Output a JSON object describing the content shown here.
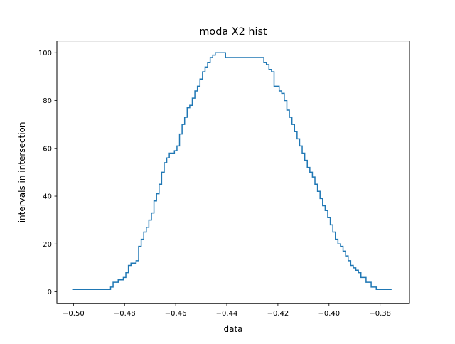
{
  "chart_data": {
    "type": "line",
    "title": "moda X2 hist",
    "xlabel": "data",
    "ylabel": "intervals in intersection",
    "xlim": [
      -0.5065,
      -0.3685
    ],
    "ylim": [
      -4.95,
      104.95
    ],
    "xticks": [
      -0.5,
      -0.48,
      -0.46,
      -0.44,
      -0.42,
      -0.4,
      -0.38
    ],
    "xtick_labels": [
      "−0.50",
      "−0.48",
      "−0.46",
      "−0.44",
      "−0.42",
      "−0.40",
      "−0.38"
    ],
    "yticks": [
      0,
      20,
      40,
      60,
      80,
      100
    ],
    "ytick_labels": [
      "0",
      "20",
      "40",
      "60",
      "80",
      "100"
    ],
    "grid": false,
    "line_color": "#1f77b4",
    "series": [
      {
        "step": true,
        "x": [
          -0.5005,
          -0.486,
          -0.4855,
          -0.4845,
          -0.4825,
          -0.4805,
          -0.4795,
          -0.4785,
          -0.4775,
          -0.4755,
          -0.4745,
          -0.4735,
          -0.4725,
          -0.4715,
          -0.4705,
          -0.4695,
          -0.4685,
          -0.4675,
          -0.4665,
          -0.4655,
          -0.4645,
          -0.4635,
          -0.4625,
          -0.4605,
          -0.4595,
          -0.4585,
          -0.4575,
          -0.4565,
          -0.4555,
          -0.4545,
          -0.4535,
          -0.4525,
          -0.4515,
          -0.4505,
          -0.4495,
          -0.4485,
          -0.4475,
          -0.4465,
          -0.4455,
          -0.4445,
          -0.4425,
          -0.4405,
          -0.4385,
          -0.4365,
          -0.4255,
          -0.4245,
          -0.4235,
          -0.4225,
          -0.4215,
          -0.4195,
          -0.4185,
          -0.4175,
          -0.4165,
          -0.4155,
          -0.4145,
          -0.4135,
          -0.4125,
          -0.4115,
          -0.4105,
          -0.4095,
          -0.4085,
          -0.4075,
          -0.4065,
          -0.4055,
          -0.4045,
          -0.4035,
          -0.4025,
          -0.4015,
          -0.4005,
          -0.3995,
          -0.3985,
          -0.3975,
          -0.3965,
          -0.3955,
          -0.3945,
          -0.3935,
          -0.3925,
          -0.3915,
          -0.3905,
          -0.3895,
          -0.3885,
          -0.3875,
          -0.3855,
          -0.3835,
          -0.3815,
          -0.3805,
          -0.3795,
          -0.3785,
          -0.3755
        ],
        "y": [
          1,
          1,
          2,
          4,
          5,
          6,
          8,
          11,
          12,
          13,
          19,
          22,
          25,
          27,
          30,
          33,
          38,
          41,
          45,
          50,
          54,
          56,
          58,
          59,
          61,
          66,
          70,
          73,
          77,
          78,
          81,
          84,
          86,
          89,
          92,
          94,
          96,
          98,
          99,
          100,
          100,
          98,
          98,
          98,
          96,
          95,
          93,
          92,
          86,
          84,
          83,
          80,
          76,
          73,
          70,
          67,
          64,
          61,
          58,
          55,
          52,
          50,
          48,
          45,
          42,
          39,
          36,
          34,
          31,
          28,
          25,
          22,
          20,
          19,
          17,
          15,
          13,
          11,
          10,
          9,
          8,
          6,
          4,
          2,
          1,
          1,
          1,
          1,
          1
        ]
      }
    ]
  }
}
